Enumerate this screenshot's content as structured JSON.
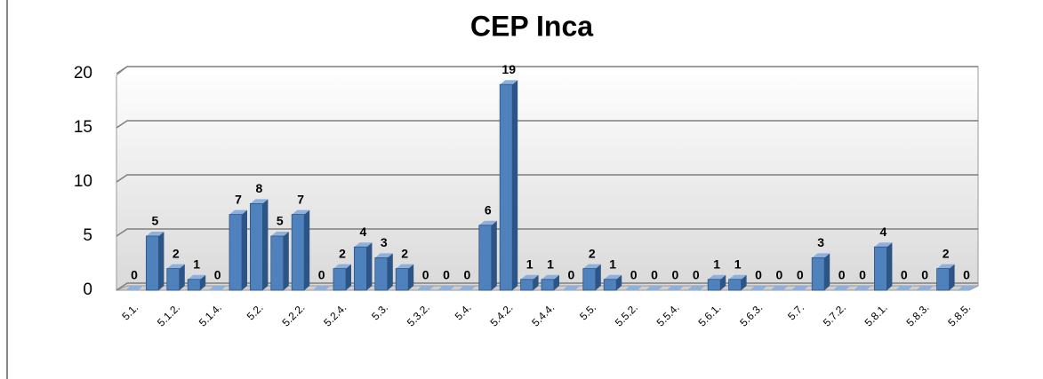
{
  "chart_data": {
    "type": "bar",
    "title": "CEP Inca",
    "categories": [
      "5.1.",
      null,
      "5.1.2.",
      null,
      "5.1.4.",
      null,
      "5.2.",
      null,
      "5.2.2.",
      null,
      "5.2.4.",
      null,
      "5.3.",
      null,
      "5.3.2.",
      null,
      "5.4.",
      null,
      "5.4.2.",
      null,
      "5.4.4.",
      null,
      "5.5.",
      null,
      "5.5.2.",
      null,
      "5.5.4.",
      null,
      "5.6.1.",
      null,
      "5.6.3.",
      null,
      "5.7.",
      null,
      "5.7.2.",
      null,
      "5.8.1.",
      null,
      "5.8.3.",
      null,
      "5.8.5."
    ],
    "values": [
      0,
      5,
      2,
      1,
      0,
      7,
      8,
      5,
      7,
      0,
      2,
      4,
      3,
      2,
      0,
      0,
      0,
      6,
      19,
      1,
      1,
      0,
      2,
      1,
      0,
      0,
      0,
      0,
      1,
      1,
      0,
      0,
      0,
      3,
      0,
      0,
      4,
      0,
      0,
      2,
      0
    ],
    "color": "#4f81bd",
    "ylim": [
      0,
      20
    ],
    "yticks": [
      0,
      5,
      10,
      15,
      20
    ],
    "grid": true
  }
}
